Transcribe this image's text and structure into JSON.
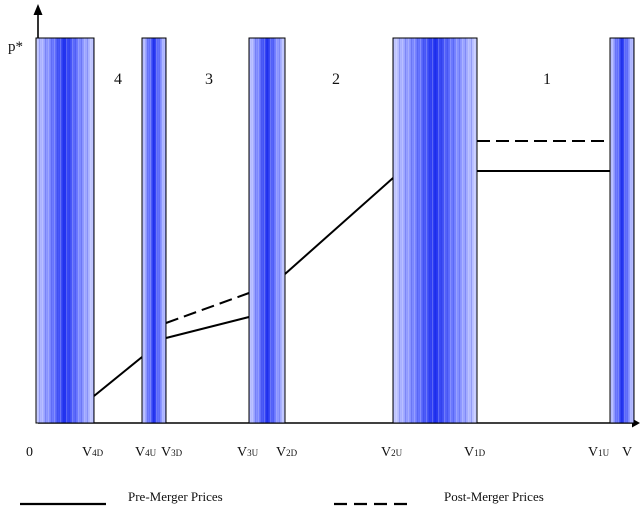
{
  "diagram": {
    "y_axis_label": "p*",
    "origin_label": "0",
    "region_labels": [
      "4",
      "3",
      "2",
      "1"
    ],
    "x_tick_labels": [
      {
        "main": "V",
        "sub": "4D"
      },
      {
        "main": "V",
        "sub": "4U"
      },
      {
        "main": "V",
        "sub": "3D"
      },
      {
        "main": "V",
        "sub": "3U"
      },
      {
        "main": "V",
        "sub": "2D"
      },
      {
        "main": "V",
        "sub": "2U"
      },
      {
        "main": "V",
        "sub": "1D"
      },
      {
        "main": "V",
        "sub": "1U"
      },
      {
        "main": "V",
        "sub": ""
      }
    ],
    "band_color": "#2f3ff5",
    "line_color": "#000000"
  },
  "legend": {
    "pre_merger_label": "Pre-Merger Prices",
    "post_merger_label": "Post-Merger Prices"
  }
}
